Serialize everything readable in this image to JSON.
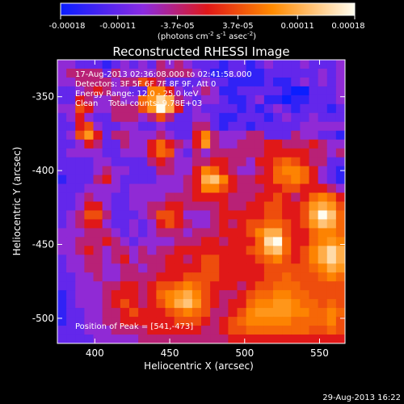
{
  "colorbar": {
    "ticks": [
      "-0.00018",
      "-0.00011",
      "-3.7e-05",
      "3.7e-05",
      "0.00011",
      "0.00018"
    ],
    "tick_values": [
      -0.00018,
      -0.00011,
      -3.7e-05,
      3.7e-05,
      0.00011,
      0.00018
    ],
    "range": [
      -0.00018,
      0.00018
    ],
    "unit_label": "(photons cm",
    "unit_exp1": "-2",
    "unit_mid": " s",
    "unit_exp2": "-1",
    "unit_tail": " asec",
    "unit_exp3": "-2",
    "unit_close": ")"
  },
  "title": "Reconstructed RHESSI Image",
  "info": {
    "time": "17-Aug-2013 02:36:08.000 to 02:41:58.000",
    "detectors": "Detectors: 3F 5F 6F 7F 8F 9F, Att 0",
    "energy": "Energy Range: 12.0 - 25.0 keV",
    "clean": "Clean    Total counts: 9.78E+03",
    "peak": "Position of Peak = [541,-473]"
  },
  "footer_date": "29-Aug-2013 16:22",
  "chart_data": {
    "type": "heatmap",
    "title": "Reconstructed RHESSI Image",
    "xlabel": "Heliocentric X (arcsec)",
    "ylabel": "Heliocentric Y (arcsec)",
    "xlim": [
      375,
      567
    ],
    "ylim": [
      -517,
      -325
    ],
    "xticks": [
      400,
      450,
      500,
      550
    ],
    "yticks": [
      -350,
      -400,
      -450,
      -500
    ],
    "grid": false,
    "colorbar_range": [
      -0.00018,
      0.00018
    ],
    "grid_cells": 32,
    "rows_top_to_bottom": [
      "DDCCCBCDCDCEDEDCCCBCCBCDCCCDCCCD",
      "DEEEECEDDDDEEEEDCBBCCBBCCCCCCDCD",
      "DDEEEEDEEGFECCCCDCCBBBBCBBCDCDCD",
      "CCDEFEDDCCIIFDCDEDBBCCCCCBAACCCD",
      "CCFEDDEDDHJMKEDCDDCBBCDBBABBCCCD",
      "DDGFDDEEEGJNKFCDCCCCBCBCDCBCCCBC",
      "CDFDCCEEEDEGECCDDCBBCCCBCDCCDCCC",
      "CCFGDCCDDCCDCCCEECBCCBCCCCCDDDDD",
      "CDGJFCEEDDDEDCCFIEDDDEECCCEDDCCB",
      "CCDFECCEDDFHFEDFJEDDEEEFFEEEFEDD",
      "CDDDDCCDDDFHGDCEDEEEEEEFFFFFEEDE",
      "CCCCDDCCCCEFEDDEEFFEEDFFGHGFEECC",
      "CCCCDEDDCCCEEDDFIHFEDDEFHIIHFDCB",
      "BCCCEFDCCCCDDDEFKLIFEEFFHHIHFDCB",
      "CCCDDDDCDDDDDDEFIIGFEEEFFGGFFFED",
      "CCDEDDCCDDDDEEEFFFFEEEFFGFEFHIHF",
      "CCDFFDCCDDEEFFEEEEFEEFFGGFFGJKJG",
      "CDEGGECCCDEGGFDDDEFFFFFGGFFGKNLH",
      "CDEFFDCCDCDFGFEDDEFEFGGHHGFGJLKH",
      "DDDEEEDCDCDEEEDEEEFFFGIKKGFFHIIH",
      "DDEEEFEDCDDDDEEEFFEFFFHMNHFFHIJI",
      "DDEFEDEEDEDEEFFFFFFFFGHKLHFGIKMK",
      "CDDEEDEFDEEEFFEFGGFFFFGHIGFGIKMK",
      "CDDEEDDEEDEEFFFFGGFFFFFGGGGGHIKJ",
      "CCDDEDDEEEEFFFGGGGFFFFFGGHGGGHIH",
      "CCDDDEEFFEFGGHIHGFFFEFGGHHHGGGGG",
      "BCDDDEFFFEFHIJKIGFEEFGHHIIHHGGGG",
      "BCDDDEFGFEFGIKLJGFEFFHIIJJIHHGHG",
      "BCCDDEEFGFFFGHIHGEEFGIJJJJIIHHIH",
      "BCCDDEEFFFFFFGGGFEFGHIIIIIHHHHIG",
      "CCCDDDEEEEFFFFFFEEFGGHHHHHHHGGHG",
      "CCCCDDDDDEEEEEEEEEEFFFFFFFFFFFFF"
    ],
    "level_key": {
      "A": -0.00018,
      "B": -0.00015,
      "C": -0.00011,
      "D": -7.4e-05,
      "E": -3.7e-05,
      "F": 0.0,
      "G": 3.7e-05,
      "H": 5.5e-05,
      "I": 7.4e-05,
      "J": 9e-05,
      "K": 0.00011,
      "L": 0.00013,
      "M": 0.00015,
      "N": 0.00018
    }
  }
}
